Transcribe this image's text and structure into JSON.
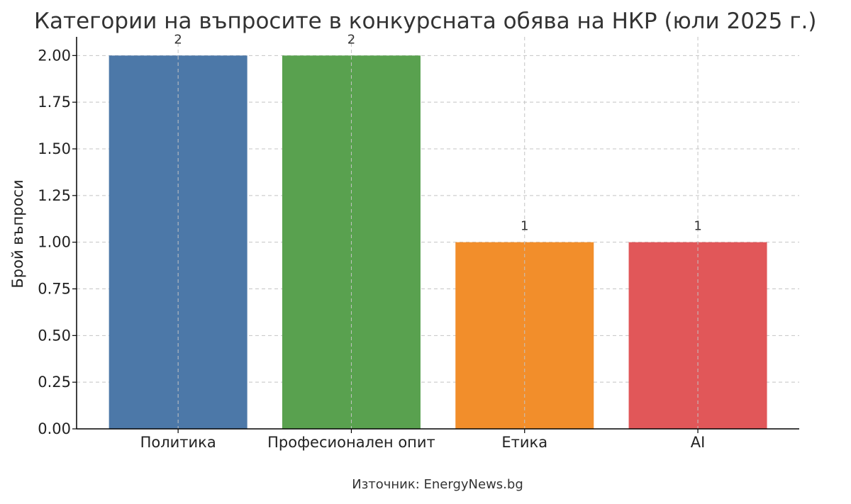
{
  "chart_data": {
    "type": "bar",
    "title": "Категории на въпросите в конкурсната обява на НКР (юли 2025 г.)",
    "ylabel": "Брой въпроси",
    "xlabel": "",
    "categories": [
      "Политика",
      "Професионален опит",
      "Етика",
      "AI"
    ],
    "values": [
      2,
      2,
      1,
      1
    ],
    "value_labels": [
      "2",
      "2",
      "1",
      "1"
    ],
    "colors": [
      "#4c78a8",
      "#59a14f",
      "#f28e2b",
      "#e15759"
    ],
    "ylim": [
      0,
      2.1
    ],
    "yticks": [
      0,
      0.25,
      0.5,
      0.75,
      1.0,
      1.25,
      1.5,
      1.75,
      2.0
    ],
    "ytick_labels": [
      "0.00",
      "0.25",
      "0.50",
      "0.75",
      "1.00",
      "1.25",
      "1.50",
      "1.75",
      "2.00"
    ],
    "grid": true,
    "legend": "none"
  },
  "footer": {
    "source": "Източник: EnergyNews.bg"
  }
}
